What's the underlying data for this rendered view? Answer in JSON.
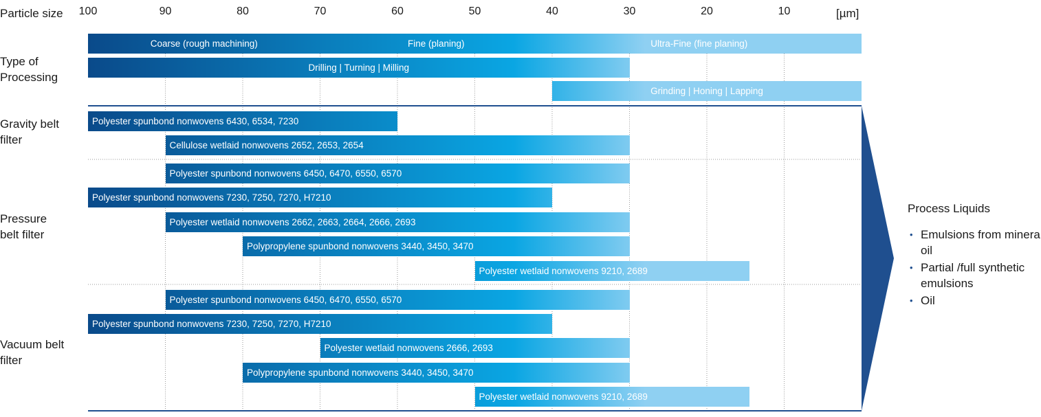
{
  "chart_data": {
    "type": "bar",
    "x_axis_label": "Particle size",
    "x_unit": "[µm]",
    "x_ticks": [
      100,
      90,
      80,
      70,
      60,
      50,
      40,
      30,
      20,
      10
    ],
    "x_range": [
      100,
      0
    ],
    "processing_label": "Type of Processing",
    "processing": [
      {
        "label": "Coarse (rough machining)",
        "label_at": 85,
        "from": 100,
        "to": 0,
        "style": "gradient"
      },
      {
        "label": "Fine (planing)",
        "label_at": 55,
        "from": 100,
        "to": 0,
        "style": "gradient"
      },
      {
        "label": "Ultra-Fine (fine planing)",
        "label_at": 21,
        "from": 100,
        "to": 0,
        "style": "gradient"
      },
      {
        "label": "Drilling | Turning | Milling",
        "from": 100,
        "to": 30
      },
      {
        "label": "Grinding | Honing | Lapping",
        "from": 40,
        "to": 0
      }
    ],
    "groups": [
      {
        "name": "Gravity belt filter",
        "bars": [
          {
            "label": "Polyester spunbond nonwovens 6430, 6534, 7230",
            "from": 100,
            "to": 60
          },
          {
            "label": "Cellulose wetlaid nonwovens 2652, 2653, 2654",
            "from": 90,
            "to": 30
          }
        ]
      },
      {
        "name": "Pressure belt filter",
        "bars": [
          {
            "label": "Polyester spunbond nonwovens 6450, 6470, 6550, 6570",
            "from": 90,
            "to": 30
          },
          {
            "label": "Polyester spunbond nonwovens 7230, 7250, 7270, H7210",
            "from": 100,
            "to": 40
          },
          {
            "label": "Polyester wetlaid nonwovens 2662, 2663, 2664, 2666, 2693",
            "from": 90,
            "to": 30
          },
          {
            "label": "Polypropylene spunbond nonwovens 3440, 3450, 3470",
            "from": 80,
            "to": 30
          },
          {
            "label": "Polyester wetlaid nonwovens 9210, 2689",
            "from": 50,
            "to": 14.5
          }
        ]
      },
      {
        "name": "Vacuum belt filter",
        "bars": [
          {
            "label": "Polyester spunbond nonwovens 6450, 6470, 6550, 6570",
            "from": 90,
            "to": 30
          },
          {
            "label": "Polyester spunbond nonwovens 7230, 7250, 7270, H7210",
            "from": 100,
            "to": 40
          },
          {
            "label": "Polyester wetlaid nonwovens 2666, 2693",
            "from": 70,
            "to": 30
          },
          {
            "label": "Polypropylene spunbond nonwovens 3440, 3450, 3470",
            "from": 80,
            "to": 30
          },
          {
            "label": "Polyester wetlaid nonwovens 9210, 2689",
            "from": 50,
            "to": 14.5
          }
        ]
      }
    ],
    "gradient_colors": [
      "#0a4a8a",
      "#0aa6e3",
      "#8fd0f2"
    ],
    "arrow_color": "#1f4f8f"
  },
  "side_panel": {
    "title": "Process Liquids",
    "items": [
      "Emulsions from mineral oil",
      "Partial /full synthetic emulsions",
      "Oil"
    ]
  }
}
